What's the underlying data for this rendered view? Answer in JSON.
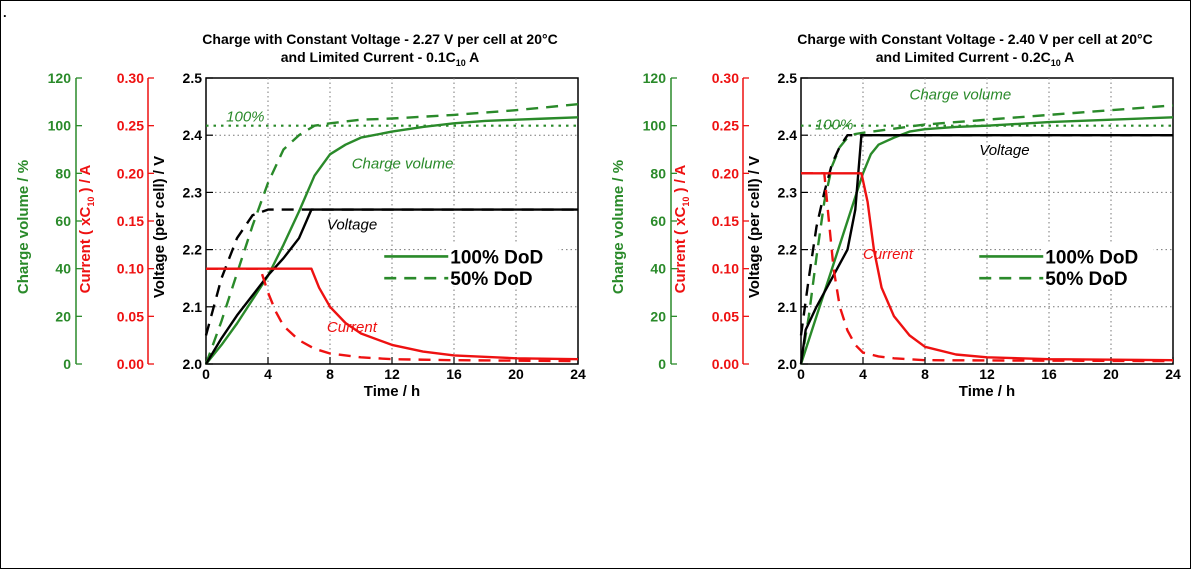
{
  "page": {
    "corner_mark": "."
  },
  "colors": {
    "green": "#2a8a2a",
    "red": "#ee1111",
    "black": "#000000",
    "grid": "#777777"
  },
  "chart_data": [
    {
      "type": "line",
      "title_line1": "Charge with Constant Voltage - 2.27 V per cell at 20°C",
      "title_line2": {
        "prefix": "and Limited Current - 0.1C",
        "sub": "10",
        "suffix": " A"
      },
      "xlabel": "Time / h",
      "xlim": [
        0,
        24
      ],
      "xticks": [
        "0",
        "4",
        "8",
        "12",
        "16",
        "20",
        "24"
      ],
      "axes": {
        "charge": {
          "label": "Charge volume / %",
          "range": [
            0,
            120
          ],
          "ticks": [
            "0",
            "20",
            "40",
            "60",
            "80",
            "100",
            "120"
          ]
        },
        "current": {
          "label_prefix": "Current ( xC",
          "label_sub": "10",
          "label_suffix": " ) / A",
          "range": [
            0,
            0.3
          ],
          "ticks": [
            "0.00",
            "0.05",
            "0.10",
            "0.15",
            "0.20",
            "0.25",
            "0.30"
          ]
        },
        "voltage": {
          "label": "Voltage (per cell) / V",
          "range": [
            2.0,
            2.5
          ],
          "ticks": [
            "2.0",
            "2.1",
            "2.2",
            "2.3",
            "2.4",
            "2.5"
          ]
        }
      },
      "annotations": {
        "hundred": "100%",
        "charge": "Charge volume",
        "voltage": "Voltage",
        "current": "Current"
      },
      "legend": [
        "100% DoD",
        "50% DoD"
      ],
      "series": [
        {
          "axis": "charge",
          "color": "green",
          "dash": "dotted",
          "points": [
            [
              0,
              100
            ],
            [
              24,
              100
            ]
          ]
        },
        {
          "axis": "charge",
          "color": "green",
          "dash": "solid",
          "points": [
            [
              0,
              0
            ],
            [
              1,
              8
            ],
            [
              2,
              17
            ],
            [
              3,
              27
            ],
            [
              4,
              37
            ],
            [
              5,
              50
            ],
            [
              6,
              64
            ],
            [
              7,
              79
            ],
            [
              8,
              88
            ],
            [
              9,
              92
            ],
            [
              10,
              95
            ],
            [
              12,
              97.5
            ],
            [
              14,
              99.5
            ],
            [
              16,
              101
            ],
            [
              18,
              102
            ],
            [
              20,
              102.5
            ],
            [
              22,
              103
            ],
            [
              24,
              103.5
            ]
          ]
        },
        {
          "axis": "charge",
          "color": "green",
          "dash": "dashed",
          "points": [
            [
              0,
              0
            ],
            [
              1,
              18
            ],
            [
              2,
              38
            ],
            [
              3,
              58
            ],
            [
              4,
              76
            ],
            [
              5,
              90
            ],
            [
              6,
              96
            ],
            [
              7,
              100
            ],
            [
              8,
              101
            ],
            [
              10,
              102.5
            ],
            [
              12,
              103
            ],
            [
              16,
              104.5
            ],
            [
              20,
              106.5
            ],
            [
              24,
              109
            ]
          ]
        },
        {
          "axis": "voltage",
          "color": "black",
          "dash": "solid",
          "points": [
            [
              0,
              2.0
            ],
            [
              1,
              2.045
            ],
            [
              2,
              2.085
            ],
            [
              3,
              2.12
            ],
            [
              4,
              2.155
            ],
            [
              5,
              2.185
            ],
            [
              6,
              2.22
            ],
            [
              6.8,
              2.27
            ],
            [
              24,
              2.27
            ]
          ]
        },
        {
          "axis": "voltage",
          "color": "black",
          "dash": "dashed",
          "points": [
            [
              0,
              2.05
            ],
            [
              1,
              2.15
            ],
            [
              2,
              2.22
            ],
            [
              3,
              2.26
            ],
            [
              4,
              2.27
            ],
            [
              24,
              2.27
            ]
          ]
        },
        {
          "axis": "current",
          "color": "red",
          "dash": "solid",
          "points": [
            [
              0,
              0.1
            ],
            [
              6.8,
              0.1
            ],
            [
              7.3,
              0.08
            ],
            [
              8,
              0.06
            ],
            [
              9,
              0.043
            ],
            [
              10,
              0.032
            ],
            [
              12,
              0.02
            ],
            [
              14,
              0.013
            ],
            [
              16,
              0.009
            ],
            [
              20,
              0.006
            ],
            [
              24,
              0.005
            ]
          ]
        },
        {
          "axis": "current",
          "color": "red",
          "dash": "dashed",
          "points": [
            [
              0,
              0.1
            ],
            [
              3.5,
              0.1
            ],
            [
              4,
              0.075
            ],
            [
              4.5,
              0.055
            ],
            [
              5,
              0.04
            ],
            [
              6,
              0.025
            ],
            [
              7,
              0.016
            ],
            [
              8,
              0.011
            ],
            [
              10,
              0.007
            ],
            [
              12,
              0.005
            ],
            [
              16,
              0.004
            ],
            [
              24,
              0.003
            ]
          ]
        }
      ]
    },
    {
      "type": "line",
      "title_line1": "Charge with Constant Voltage - 2.40 V per cell at 20°C",
      "title_line2": {
        "prefix": "and Limited Current - 0.2C",
        "sub": "10",
        "suffix": " A"
      },
      "xlabel": "Time / h",
      "xlim": [
        0,
        24
      ],
      "xticks": [
        "0",
        "4",
        "8",
        "12",
        "16",
        "20",
        "24"
      ],
      "axes": {
        "charge": {
          "label": "Charge volume / %",
          "range": [
            0,
            120
          ],
          "ticks": [
            "0",
            "20",
            "40",
            "60",
            "80",
            "100",
            "120"
          ]
        },
        "current": {
          "label_prefix": "Current ( xC",
          "label_sub": "10",
          "label_suffix": " ) / A",
          "range": [
            0,
            0.3
          ],
          "ticks": [
            "0.00",
            "0.05",
            "0.10",
            "0.15",
            "0.20",
            "0.25",
            "0.30"
          ]
        },
        "voltage": {
          "label": "Voltage (per cell) / V",
          "range": [
            2.0,
            2.5
          ],
          "ticks": [
            "2.0",
            "2.1",
            "2.2",
            "2.3",
            "2.4",
            "2.5"
          ]
        }
      },
      "annotations": {
        "hundred": "100%",
        "charge": "Charge volume",
        "voltage": "Voltage",
        "current": "Current"
      },
      "legend": [
        "100% DoD",
        "50% DoD"
      ],
      "series": [
        {
          "axis": "charge",
          "color": "green",
          "dash": "dotted",
          "points": [
            [
              0,
              100
            ],
            [
              24,
              100
            ]
          ]
        },
        {
          "axis": "charge",
          "color": "green",
          "dash": "solid",
          "points": [
            [
              0,
              0
            ],
            [
              1,
              20
            ],
            [
              2,
              40
            ],
            [
              3,
              60
            ],
            [
              4,
              80
            ],
            [
              4.5,
              88
            ],
            [
              5,
              92
            ],
            [
              6,
              95
            ],
            [
              7,
              97.5
            ],
            [
              8,
              98.5
            ],
            [
              10,
              99.5
            ],
            [
              12,
              100
            ],
            [
              16,
              101.5
            ],
            [
              20,
              102.5
            ],
            [
              24,
              103.5
            ]
          ]
        },
        {
          "axis": "charge",
          "color": "green",
          "dash": "dashed",
          "points": [
            [
              0,
              0
            ],
            [
              0.5,
              20
            ],
            [
              1,
              45
            ],
            [
              1.5,
              68
            ],
            [
              2,
              83
            ],
            [
              2.5,
              91
            ],
            [
              3,
              95
            ],
            [
              3.5,
              96.5
            ],
            [
              4,
              97
            ],
            [
              8,
              100.5
            ],
            [
              12,
              102.5
            ],
            [
              16,
              104.5
            ],
            [
              20,
              106.5
            ],
            [
              24,
              108.5
            ]
          ]
        },
        {
          "axis": "voltage",
          "color": "black",
          "dash": "solid",
          "points": [
            [
              0,
              2.0
            ],
            [
              0.3,
              2.06
            ],
            [
              1,
              2.1
            ],
            [
              2,
              2.15
            ],
            [
              3,
              2.2
            ],
            [
              3.5,
              2.27
            ],
            [
              3.9,
              2.4
            ],
            [
              24,
              2.4
            ]
          ]
        },
        {
          "axis": "voltage",
          "color": "black",
          "dash": "dashed",
          "points": [
            [
              0,
              2.05
            ],
            [
              0.5,
              2.15
            ],
            [
              1,
              2.24
            ],
            [
              1.5,
              2.3
            ],
            [
              2,
              2.35
            ],
            [
              2.5,
              2.38
            ],
            [
              3,
              2.4
            ],
            [
              24,
              2.4
            ]
          ]
        },
        {
          "axis": "current",
          "color": "red",
          "dash": "solid",
          "points": [
            [
              0,
              0.2
            ],
            [
              3.9,
              0.2
            ],
            [
              4.3,
              0.17
            ],
            [
              4.7,
              0.12
            ],
            [
              5.2,
              0.08
            ],
            [
              6,
              0.05
            ],
            [
              7,
              0.03
            ],
            [
              8,
              0.018
            ],
            [
              10,
              0.01
            ],
            [
              12,
              0.007
            ],
            [
              16,
              0.005
            ],
            [
              24,
              0.004
            ]
          ]
        },
        {
          "axis": "current",
          "color": "red",
          "dash": "dashed",
          "points": [
            [
              0,
              0.2
            ],
            [
              1.5,
              0.2
            ],
            [
              1.8,
              0.15
            ],
            [
              2.1,
              0.1
            ],
            [
              2.5,
              0.06
            ],
            [
              3,
              0.035
            ],
            [
              3.5,
              0.02
            ],
            [
              4,
              0.012
            ],
            [
              5,
              0.008
            ],
            [
              6,
              0.006
            ],
            [
              8,
              0.004
            ],
            [
              24,
              0.003
            ]
          ]
        }
      ]
    }
  ]
}
